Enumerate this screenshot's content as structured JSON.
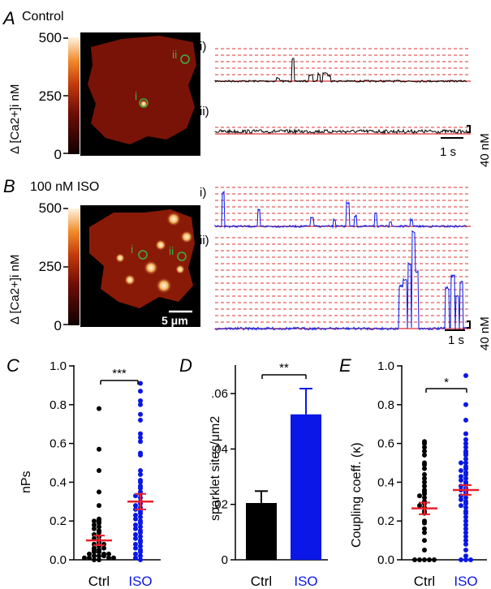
{
  "panel_a": {
    "letter": "A",
    "condition": "Control",
    "scale_ticks": [
      "500",
      "250",
      "0"
    ],
    "scale_label": "Δ [Ca2+]i nM",
    "roi_labels": [
      "i",
      "ii"
    ],
    "trace_labels": [
      "i)",
      "ii)"
    ],
    "time_scale": "1 s",
    "amp_scale": "40 nM"
  },
  "panel_b": {
    "letter": "B",
    "condition": "100 nM ISO",
    "scale_ticks": [
      "500",
      "250",
      "0"
    ],
    "scale_label": "Δ [Ca2+]i nM",
    "roi_labels": [
      "i",
      "ii"
    ],
    "trace_labels": [
      "i)",
      "ii)"
    ],
    "space_scale": "5 μm",
    "time_scale": "1 s",
    "amp_scale": "40 nM"
  },
  "colors": {
    "control": "#000000",
    "iso": "#0a17e6",
    "mean_bar": "#e8202a",
    "level_lines": "#e03030",
    "roi_circle": "#3cb043"
  },
  "chart_data": [
    {
      "panel": "C",
      "type": "scatter",
      "ylabel": "nPs",
      "yticks": [
        "0.0",
        "0.2",
        "0.4",
        "0.6",
        "0.8",
        "1.0"
      ],
      "ylim": [
        0,
        1.0
      ],
      "categories": [
        "Ctrl",
        "ISO"
      ],
      "significance": "***",
      "series": [
        {
          "color": "#000000",
          "mean": 0.1,
          "sem": 0.025,
          "values": [
            0.78,
            0.57,
            0.46,
            0.35,
            0.28,
            0.21,
            0.2,
            0.2,
            0.19,
            0.18,
            0.17,
            0.16,
            0.15,
            0.14,
            0.13,
            0.12,
            0.11,
            0.1,
            0.09,
            0.08,
            0.08,
            0.07,
            0.06,
            0.06,
            0.05,
            0.05,
            0.04,
            0.04,
            0.03,
            0.03,
            0.03,
            0.02,
            0.02,
            0.02,
            0.01,
            0.01,
            0.01,
            0.01,
            0.0,
            0.0
          ]
        },
        {
          "color": "#0a17e6",
          "mean": 0.3,
          "sem": 0.04,
          "values": [
            0.91,
            0.87,
            0.82,
            0.8,
            0.75,
            0.72,
            0.65,
            0.63,
            0.61,
            0.55,
            0.54,
            0.46,
            0.44,
            0.41,
            0.4,
            0.38,
            0.37,
            0.35,
            0.34,
            0.33,
            0.32,
            0.3,
            0.29,
            0.28,
            0.27,
            0.26,
            0.25,
            0.24,
            0.23,
            0.22,
            0.21,
            0.2,
            0.19,
            0.18,
            0.17,
            0.16,
            0.15,
            0.14,
            0.13,
            0.12,
            0.11,
            0.1,
            0.09,
            0.08,
            0.07,
            0.06,
            0.05,
            0.04,
            0.03,
            0.02,
            0.01,
            0.0
          ]
        }
      ]
    },
    {
      "panel": "D",
      "type": "bar",
      "ylabel": "sparklet sites/μm2",
      "yticks": [
        "0",
        ".02",
        ".04",
        ".06"
      ],
      "ylim": [
        0,
        0.07
      ],
      "categories": [
        "Ctrl",
        "ISO"
      ],
      "values": [
        0.0205,
        0.0525
      ],
      "errors": [
        0.0043,
        0.0093
      ],
      "significance": "**"
    },
    {
      "panel": "E",
      "type": "scatter",
      "ylabel": "Coupling coeff. (κ)",
      "yticks": [
        "0.0",
        "0.2",
        "0.4",
        "0.6",
        "0.8",
        "1.0"
      ],
      "ylim": [
        0,
        1.0
      ],
      "categories": [
        "Ctrl",
        "ISO"
      ],
      "significance": "*",
      "series": [
        {
          "color": "#000000",
          "mean": 0.265,
          "sem": 0.03,
          "values": [
            0.61,
            0.6,
            0.58,
            0.56,
            0.54,
            0.5,
            0.49,
            0.47,
            0.44,
            0.42,
            0.4,
            0.38,
            0.36,
            0.35,
            0.34,
            0.33,
            0.32,
            0.3,
            0.29,
            0.28,
            0.27,
            0.25,
            0.24,
            0.2,
            0.19,
            0.16,
            0.14,
            0.1,
            0.05,
            0.0,
            0.0,
            0.0,
            0.0,
            0.0
          ]
        },
        {
          "color": "#0a17e6",
          "mean": 0.36,
          "sem": 0.025,
          "values": [
            0.95,
            0.8,
            0.72,
            0.65,
            0.62,
            0.6,
            0.58,
            0.56,
            0.55,
            0.54,
            0.52,
            0.5,
            0.5,
            0.48,
            0.47,
            0.46,
            0.45,
            0.44,
            0.43,
            0.42,
            0.41,
            0.4,
            0.39,
            0.38,
            0.37,
            0.36,
            0.35,
            0.34,
            0.33,
            0.32,
            0.31,
            0.3,
            0.29,
            0.28,
            0.27,
            0.25,
            0.24,
            0.22,
            0.2,
            0.18,
            0.16,
            0.14,
            0.12,
            0.1,
            0.08,
            0.05,
            0.02,
            0.0,
            0.0,
            0.0
          ]
        }
      ]
    }
  ]
}
